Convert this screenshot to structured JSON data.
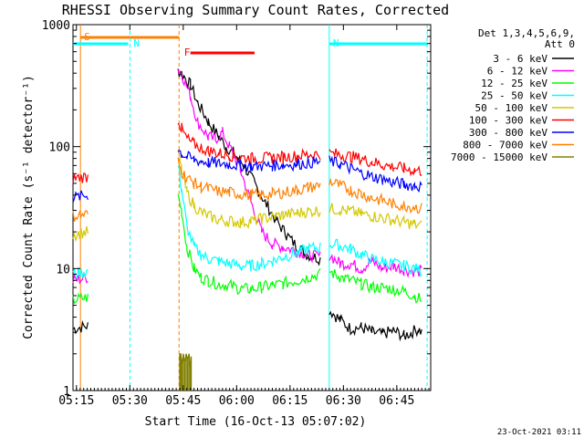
{
  "chart_data": {
    "type": "line",
    "title": "RHESSI Observing Summary Count Rates, Corrected",
    "xlabel": "Start Time (16-Oct-13 05:07:02)",
    "ylabel": "Corrected Count Rate (s⁻¹ detector⁻¹)",
    "y_scale": "log",
    "ylim": [
      1,
      1000
    ],
    "xlim": [
      7.0,
      107.5
    ],
    "x_units": "minutes after 05:07:02",
    "x_ticks": [
      {
        "value": 7.97,
        "label": "05:15"
      },
      {
        "value": 22.97,
        "label": "05:30"
      },
      {
        "value": 37.97,
        "label": "05:45"
      },
      {
        "value": 52.97,
        "label": "06:00"
      },
      {
        "value": 67.97,
        "label": "06:15"
      },
      {
        "value": 82.97,
        "label": "06:30"
      },
      {
        "value": 97.97,
        "label": "06:45"
      }
    ],
    "y_ticks": [
      {
        "value": 1,
        "label": "1"
      },
      {
        "value": 10,
        "label": "10"
      },
      {
        "value": 100,
        "label": "100"
      },
      {
        "value": 1000,
        "label": "1000"
      }
    ],
    "legend": {
      "position": "top-right",
      "header": [
        "Det 1,3,4,5,6,9,",
        "Att 0"
      ]
    },
    "footer_timestamp": "23-Oct-2021 03:11",
    "gaps": [
      [
        11.2,
        36.5
      ],
      [
        76.5,
        79.0
      ]
    ],
    "attenuator_markers": [
      {
        "label": "S",
        "color": "#ff8000",
        "x": 9.1,
        "line_style": "solid",
        "bar_start": 9.1,
        "bar_end": 36.8
      },
      {
        "label": "N",
        "color": "#00ffff",
        "x": 23.0,
        "line_style": "dashed",
        "bar_start": 7.0,
        "bar_end": 22.5
      },
      {
        "label": "N",
        "color": "#00ffff",
        "x": 79.0,
        "line_style": "solid",
        "bar_start": 79.0,
        "bar_end": 106.5
      },
      {
        "label": "",
        "color": "#00ffff",
        "x": 106.5,
        "line_style": "dashed",
        "bar_start": null,
        "bar_end": null
      },
      {
        "label": "",
        "color": "#ff8000",
        "x": 36.8,
        "line_style": "dashed",
        "bar_start": null,
        "bar_end": null
      },
      {
        "label": "F",
        "color": "#ff0000",
        "x": 37.2,
        "line_style": "none",
        "bar_start": 40.0,
        "bar_end": 58.0
      }
    ],
    "series": [
      {
        "name": "3 - 6 keV",
        "color": "#000000",
        "x": [
          7,
          11.2,
          36.5,
          37.5,
          40,
          42,
          45,
          48,
          50,
          52,
          55,
          58,
          61,
          64,
          67,
          70,
          73,
          76.5,
          79,
          82,
          85,
          88,
          91,
          94,
          97,
          100,
          102,
          104,
          105
        ],
        "y": [
          3.2,
          3.4,
          420,
          400,
          320,
          230,
          160,
          120,
          100,
          90,
          70,
          50,
          35,
          25,
          19,
          15,
          13,
          12,
          4.6,
          3.8,
          3.2,
          3.3,
          3.0,
          2.9,
          3.1,
          2.8,
          3.0,
          3.2,
          3.0
        ]
      },
      {
        "name": "6 - 12 keV",
        "color": "#ff00ff",
        "x": [
          7,
          11.2,
          36.5,
          37.5,
          40,
          42,
          45,
          47,
          49,
          51,
          54,
          57,
          60,
          63,
          66,
          70,
          73,
          76.5,
          79,
          82,
          85,
          88,
          91,
          94,
          97,
          100,
          103,
          105
        ],
        "y": [
          8,
          8.5,
          430,
          400,
          260,
          160,
          120,
          115,
          130,
          100,
          65,
          35,
          20,
          16,
          15,
          14,
          13,
          12.5,
          13,
          11,
          11,
          10,
          11.5,
          10,
          10.5,
          9.8,
          9.5,
          9.5
        ]
      },
      {
        "name": "12 - 25 keV",
        "color": "#00ff00",
        "x": [
          7,
          11.2,
          36.5,
          37.5,
          39,
          41,
          43,
          45,
          48,
          51,
          54,
          57,
          60,
          63,
          66,
          70,
          73,
          76.5,
          79,
          82,
          85,
          88,
          91,
          94,
          97,
          100,
          103,
          105
        ],
        "y": [
          5.5,
          5.8,
          40,
          30,
          15,
          10,
          8.5,
          8,
          7.5,
          7.3,
          6.8,
          6.8,
          7,
          7.3,
          7.5,
          8,
          8.5,
          9,
          9.5,
          8.5,
          8,
          7.5,
          7,
          7,
          6.8,
          6.5,
          6,
          5.5
        ]
      },
      {
        "name": "25 - 50 keV",
        "color": "#00ffff",
        "x": [
          7,
          11.2,
          36.5,
          37.5,
          39,
          41,
          43,
          45,
          48,
          51,
          54,
          57,
          60,
          63,
          66,
          70,
          73,
          76.5,
          79,
          82,
          85,
          88,
          91,
          94,
          97,
          100,
          103,
          105
        ],
        "y": [
          9,
          9.5,
          70,
          45,
          22,
          15,
          13,
          12,
          11.5,
          11,
          10.5,
          10.5,
          11,
          11.5,
          12.5,
          13.5,
          14.5,
          15,
          16,
          15.5,
          14.5,
          13,
          12,
          11.5,
          11,
          10.5,
          10,
          9.5
        ]
      },
      {
        "name": "50 - 100 keV",
        "color": "#d4c800",
        "x": [
          7,
          11.2,
          36.5,
          37.5,
          39,
          41,
          43,
          45,
          48,
          51,
          54,
          57,
          60,
          63,
          66,
          70,
          73,
          76.5,
          79,
          82,
          85,
          88,
          91,
          94,
          97,
          100,
          103,
          105
        ],
        "y": [
          19,
          20,
          90,
          65,
          42,
          33,
          29,
          27,
          25,
          24.5,
          24,
          24.5,
          25.5,
          26.5,
          27.5,
          28.5,
          29.5,
          30,
          31,
          30.5,
          29.5,
          28,
          27,
          26,
          25,
          24,
          23,
          22.5
        ]
      },
      {
        "name": "100 - 300 keV",
        "color": "#ff0000",
        "x": [
          7,
          11.2,
          36.5,
          37.5,
          39,
          41,
          43,
          45,
          48,
          51,
          54,
          57,
          60,
          63,
          66,
          70,
          73,
          76.5,
          79,
          82,
          85,
          88,
          91,
          94,
          97,
          100,
          103,
          105
        ],
        "y": [
          55,
          57,
          170,
          140,
          115,
          105,
          98,
          93,
          88,
          85,
          82,
          80,
          80,
          81,
          82,
          84,
          86,
          87,
          88,
          86,
          83,
          79,
          75,
          71,
          68,
          66,
          64,
          63
        ]
      },
      {
        "name": "300 - 800 keV",
        "color": "#0000ff",
        "x": [
          7,
          11.2,
          36.5,
          37.5,
          39,
          41,
          43,
          45,
          48,
          51,
          54,
          57,
          60,
          63,
          66,
          70,
          73,
          76.5,
          79,
          82,
          85,
          88,
          91,
          94,
          97,
          100,
          103,
          105
        ],
        "y": [
          38,
          40,
          95,
          88,
          82,
          78,
          76,
          74,
          73,
          72,
          70,
          69,
          69,
          70,
          71,
          72,
          74,
          75,
          76,
          72,
          66,
          61,
          57,
          54,
          51,
          49,
          48,
          47
        ]
      },
      {
        "name": "800 - 7000 keV",
        "color": "#ff8000",
        "x": [
          7,
          11.2,
          36.5,
          37.5,
          39,
          41,
          43,
          45,
          48,
          51,
          54,
          57,
          60,
          63,
          66,
          70,
          73,
          76.5,
          79,
          82,
          85,
          88,
          91,
          94,
          97,
          100,
          103,
          105
        ],
        "y": [
          27,
          28,
          75,
          62,
          55,
          50,
          47,
          45,
          43,
          42,
          41,
          40,
          40,
          41,
          42,
          44,
          46,
          48,
          52,
          48,
          44,
          41,
          38,
          36,
          34,
          33,
          32,
          31
        ]
      },
      {
        "name": "7000 - 15000 keV",
        "color": "#808000",
        "x": [
          37.0,
          37.3,
          37.6,
          38.0,
          38.4,
          38.8,
          39.2,
          39.6,
          40.0,
          40.2
        ],
        "y": [
          2,
          2,
          1.6,
          2,
          1.7,
          2,
          1.8,
          2,
          1.5,
          1.9
        ]
      }
    ]
  }
}
